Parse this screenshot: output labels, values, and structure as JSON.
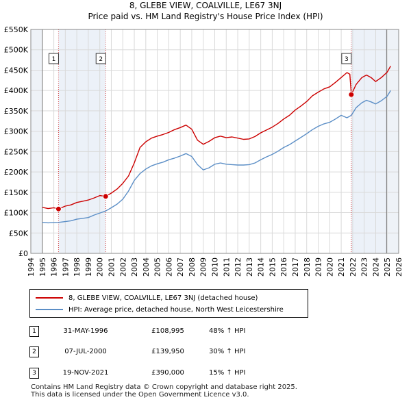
{
  "header": {
    "title": "8, GLEBE VIEW, COALVILLE, LE67 3NJ",
    "subtitle": "Price paid vs. HM Land Registry's House Price Index (HPI)"
  },
  "chart_data": {
    "type": "line",
    "title": "8, GLEBE VIEW, COALVILLE, LE67 3NJ",
    "subtitle": "Price paid vs. HM Land Registry's House Price Index (HPI)",
    "xlim": [
      1994,
      2026
    ],
    "ylim": [
      0,
      550000
    ],
    "x_ticks": [
      1994,
      1995,
      1996,
      1997,
      1998,
      1999,
      2000,
      2001,
      2002,
      2003,
      2004,
      2005,
      2006,
      2007,
      2008,
      2009,
      2010,
      2011,
      2012,
      2013,
      2014,
      2015,
      2016,
      2017,
      2018,
      2019,
      2020,
      2021,
      2022,
      2023,
      2024,
      2025,
      2026
    ],
    "y_ticks": [
      0,
      50000,
      100000,
      150000,
      200000,
      250000,
      300000,
      350000,
      400000,
      450000,
      500000,
      550000
    ],
    "y_tick_labels": [
      "£0",
      "£50K",
      "£100K",
      "£150K",
      "£200K",
      "£250K",
      "£300K",
      "£350K",
      "£400K",
      "£450K",
      "£500K",
      "£550K"
    ],
    "data_range": [
      1995.0,
      2025.5
    ],
    "sale_period_end": 2024.95,
    "grid": true,
    "series": [
      {
        "name": "8, GLEBE VIEW, COALVILLE, LE67 3NJ (detached house)",
        "color": "#cc0000",
        "points": [
          [
            1995.0,
            113000
          ],
          [
            1995.5,
            110000
          ],
          [
            1996.0,
            112000
          ],
          [
            1996.41,
            108995
          ],
          [
            1997.0,
            116000
          ],
          [
            1997.5,
            119000
          ],
          [
            1998.0,
            125000
          ],
          [
            1998.5,
            128000
          ],
          [
            1999.0,
            131000
          ],
          [
            1999.5,
            136000
          ],
          [
            2000.0,
            142000
          ],
          [
            2000.51,
            139950
          ],
          [
            2001.0,
            148000
          ],
          [
            2001.5,
            158000
          ],
          [
            2002.0,
            172000
          ],
          [
            2002.5,
            190000
          ],
          [
            2003.0,
            222000
          ],
          [
            2003.5,
            260000
          ],
          [
            2004.0,
            274000
          ],
          [
            2004.5,
            283000
          ],
          [
            2005.0,
            288000
          ],
          [
            2005.5,
            292000
          ],
          [
            2006.0,
            297000
          ],
          [
            2006.5,
            304000
          ],
          [
            2007.0,
            309000
          ],
          [
            2007.5,
            315000
          ],
          [
            2008.0,
            305000
          ],
          [
            2008.5,
            278000
          ],
          [
            2009.0,
            268000
          ],
          [
            2009.5,
            275000
          ],
          [
            2010.0,
            284000
          ],
          [
            2010.5,
            288000
          ],
          [
            2011.0,
            284000
          ],
          [
            2011.5,
            286000
          ],
          [
            2012.0,
            283000
          ],
          [
            2012.5,
            280000
          ],
          [
            2013.0,
            281000
          ],
          [
            2013.5,
            287000
          ],
          [
            2014.0,
            296000
          ],
          [
            2014.5,
            303000
          ],
          [
            2015.0,
            310000
          ],
          [
            2015.5,
            319000
          ],
          [
            2016.0,
            330000
          ],
          [
            2016.5,
            339000
          ],
          [
            2017.0,
            352000
          ],
          [
            2017.5,
            362000
          ],
          [
            2018.0,
            373000
          ],
          [
            2018.5,
            387000
          ],
          [
            2019.0,
            396000
          ],
          [
            2019.5,
            404000
          ],
          [
            2020.0,
            409000
          ],
          [
            2020.5,
            420000
          ],
          [
            2021.0,
            432000
          ],
          [
            2021.5,
            444000
          ],
          [
            2021.75,
            440000
          ],
          [
            2021.88,
            390000
          ],
          [
            2022.3,
            415000
          ],
          [
            2022.8,
            432000
          ],
          [
            2023.2,
            438000
          ],
          [
            2023.6,
            432000
          ],
          [
            2024.0,
            422000
          ],
          [
            2024.5,
            432000
          ],
          [
            2025.0,
            445000
          ],
          [
            2025.3,
            460000
          ]
        ],
        "sale_points": [
          [
            1996.41,
            108995
          ],
          [
            2000.51,
            139950
          ],
          [
            2021.88,
            390000
          ]
        ]
      },
      {
        "name": "HPI: Average price, detached house, North West Leicestershire",
        "color": "#5b8ec6",
        "points": [
          [
            1995.0,
            76000
          ],
          [
            1995.5,
            75000
          ],
          [
            1996.0,
            75500
          ],
          [
            1996.41,
            76000
          ],
          [
            1997.0,
            78000
          ],
          [
            1997.5,
            80000
          ],
          [
            1998.0,
            84000
          ],
          [
            1998.5,
            86000
          ],
          [
            1999.0,
            88000
          ],
          [
            1999.5,
            94000
          ],
          [
            2000.0,
            99000
          ],
          [
            2000.51,
            104000
          ],
          [
            2001.0,
            112000
          ],
          [
            2001.5,
            121000
          ],
          [
            2002.0,
            133000
          ],
          [
            2002.5,
            153000
          ],
          [
            2003.0,
            179000
          ],
          [
            2003.5,
            196000
          ],
          [
            2004.0,
            207000
          ],
          [
            2004.5,
            215000
          ],
          [
            2005.0,
            220000
          ],
          [
            2005.5,
            224000
          ],
          [
            2006.0,
            230000
          ],
          [
            2006.5,
            234000
          ],
          [
            2007.0,
            239000
          ],
          [
            2007.5,
            245000
          ],
          [
            2008.0,
            238000
          ],
          [
            2008.5,
            218000
          ],
          [
            2009.0,
            205000
          ],
          [
            2009.5,
            210000
          ],
          [
            2010.0,
            219000
          ],
          [
            2010.5,
            222000
          ],
          [
            2011.0,
            219000
          ],
          [
            2011.5,
            218000
          ],
          [
            2012.0,
            217000
          ],
          [
            2012.5,
            217000
          ],
          [
            2013.0,
            218000
          ],
          [
            2013.5,
            222000
          ],
          [
            2014.0,
            230000
          ],
          [
            2014.5,
            237000
          ],
          [
            2015.0,
            243000
          ],
          [
            2015.5,
            251000
          ],
          [
            2016.0,
            260000
          ],
          [
            2016.5,
            267000
          ],
          [
            2017.0,
            276000
          ],
          [
            2017.5,
            285000
          ],
          [
            2018.0,
            294000
          ],
          [
            2018.5,
            304000
          ],
          [
            2019.0,
            312000
          ],
          [
            2019.5,
            318000
          ],
          [
            2020.0,
            322000
          ],
          [
            2020.5,
            330000
          ],
          [
            2021.0,
            339000
          ],
          [
            2021.5,
            333000
          ],
          [
            2021.88,
            339000
          ],
          [
            2022.3,
            358000
          ],
          [
            2022.8,
            370000
          ],
          [
            2023.2,
            376000
          ],
          [
            2023.6,
            372000
          ],
          [
            2024.0,
            367000
          ],
          [
            2024.5,
            375000
          ],
          [
            2025.0,
            386000
          ],
          [
            2025.3,
            400000
          ]
        ]
      }
    ],
    "markers": [
      {
        "label": "1",
        "x": 1996.41,
        "value": 108995
      },
      {
        "label": "2",
        "x": 2000.51,
        "value": 139950
      },
      {
        "label": "3",
        "x": 2021.88,
        "value": 390000
      }
    ]
  },
  "legend": {
    "property_label": "8, GLEBE VIEW, COALVILLE, LE67 3NJ (detached house)",
    "hpi_label": "HPI: Average price, detached house, North West Leicestershire"
  },
  "sales": [
    {
      "num": "1",
      "date": "31-MAY-1996",
      "price": "£108,995",
      "hpi": "48% ↑ HPI"
    },
    {
      "num": "2",
      "date": "07-JUL-2000",
      "price": "£139,950",
      "hpi": "30% ↑ HPI"
    },
    {
      "num": "3",
      "date": "19-NOV-2021",
      "price": "£390,000",
      "hpi": "15% ↑ HPI"
    }
  ],
  "footer": {
    "line1": "Contains HM Land Registry data © Crown copyright and database right 2025.",
    "line2": "This data is licensed under the Open Government Licence v3.0."
  },
  "colors": {
    "property": "#cc0000",
    "hpi": "#5b8ec6",
    "sale_period_shade": "#dce6f2",
    "marker_line": "#cc0000"
  }
}
